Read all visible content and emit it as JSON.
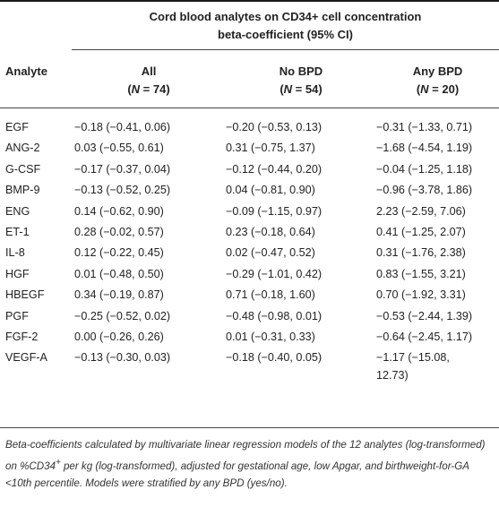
{
  "table": {
    "title_line1": "Cord blood analytes on CD34+ cell concentration",
    "title_line2": "beta-coefficient (95% CI)",
    "headers": {
      "analyte": "Analyte",
      "all": "All",
      "all_n": "(N = 74)",
      "no_bpd": "No BPD",
      "no_bpd_n": "(N = 54)",
      "any_bpd": "Any BPD",
      "any_bpd_n": "(N = 20)"
    },
    "rows": [
      {
        "analyte": "EGF",
        "all": "−0.18 (−0.41, 0.06)",
        "no_bpd": "−0.20 (−0.53, 0.13)",
        "any_bpd": "−0.31 (−1.33, 0.71)"
      },
      {
        "analyte": "ANG-2",
        "all": "0.03 (−0.55, 0.61)",
        "no_bpd": "0.31 (−0.75, 1.37)",
        "any_bpd": "−1.68 (−4.54, 1.19)"
      },
      {
        "analyte": "G-CSF",
        "all": "−0.17 (−0.37, 0.04)",
        "no_bpd": "−0.12 (−0.44, 0.20)",
        "any_bpd": "−0.04 (−1.25, 1.18)"
      },
      {
        "analyte": "BMP-9",
        "all": "−0.13 (−0.52, 0.25)",
        "no_bpd": "0.04 (−0.81, 0.90)",
        "any_bpd": "−0.96 (−3.78, 1.86)"
      },
      {
        "analyte": "ENG",
        "all": "0.14 (−0.62, 0.90)",
        "no_bpd": "−0.09 (−1.15, 0.97)",
        "any_bpd": "2.23 (−2.59, 7.06)"
      },
      {
        "analyte": "ET-1",
        "all": "0.28 (−0.02, 0.57)",
        "no_bpd": "0.23 (−0.18, 0.64)",
        "any_bpd": "0.41 (−1.25, 2.07)"
      },
      {
        "analyte": "IL-8",
        "all": "0.12 (−0.22, 0.45)",
        "no_bpd": "0.02 (−0.47, 0.52)",
        "any_bpd": "0.31 (−1.76, 2.38)"
      },
      {
        "analyte": "HGF",
        "all": "0.01 (−0.48, 0.50)",
        "no_bpd": "−0.29 (−1.01, 0.42)",
        "any_bpd": "0.83 (−1.55, 3.21)"
      },
      {
        "analyte": "HBEGF",
        "all": "0.34 (−0.19, 0.87)",
        "no_bpd": "0.71 (−0.18, 1.60)",
        "any_bpd": "0.70 (−1.92, 3.31)"
      },
      {
        "analyte": "PGF",
        "all": "−0.25 (−0.52, 0.02)",
        "no_bpd": "−0.48 (−0.98, 0.01)",
        "any_bpd": "−0.53 (−2.44, 1.39)"
      },
      {
        "analyte": "FGF-2",
        "all": "0.00 (−0.26, 0.26)",
        "no_bpd": "0.01 (−0.31, 0.33)",
        "any_bpd": "−0.64 (−2.45, 1.17)"
      },
      {
        "analyte": "VEGF-A",
        "all": "−0.13 (−0.30, 0.03)",
        "no_bpd": "−0.18 (−0.40, 0.05)",
        "any_bpd_line1": "−1.17 (−15.08,",
        "any_bpd_line2": "12.73)"
      }
    ],
    "footnote_parts": {
      "before_sup": "Beta-coefficients calculated by multivariate linear regression models of the 12 analytes (log-transformed) on %CD34",
      "sup": "+",
      "after_sup": " per kg (log-transformed), adjusted for gestational age, low Apgar, and birthweight-for-GA <10th percentile. Models were stratified by any BPD (yes/no)."
    }
  }
}
